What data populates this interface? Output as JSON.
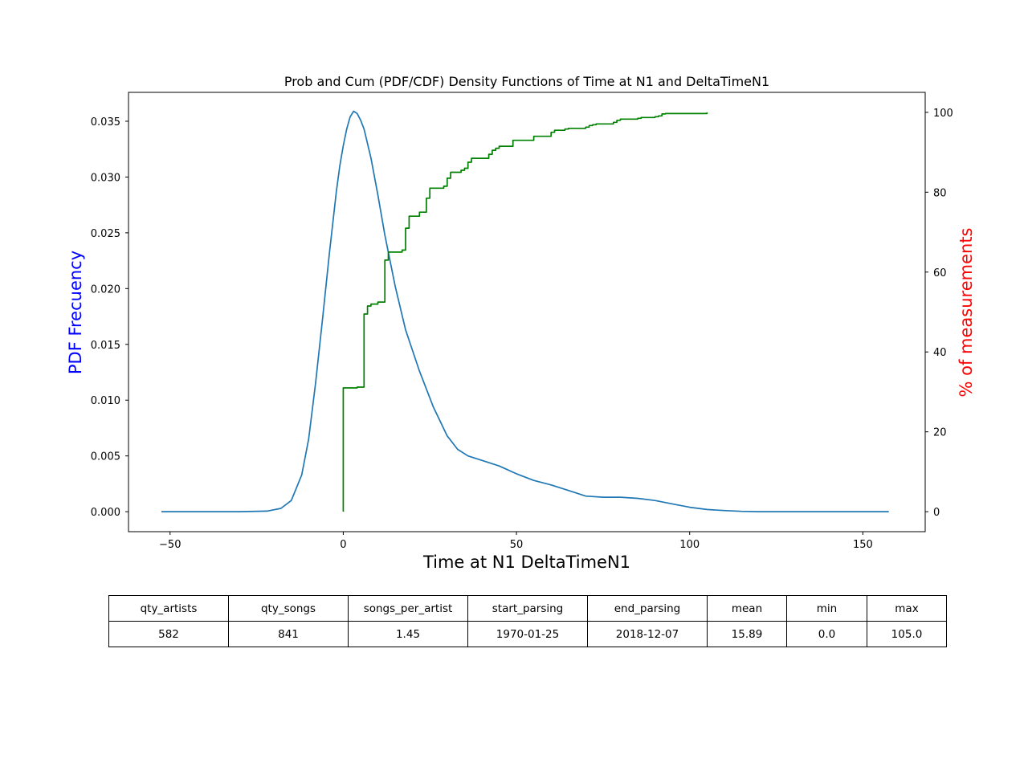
{
  "chart_data": {
    "type": "line",
    "title": "Prob and Cum (PDF/CDF) Density Functions of Time at N1 and DeltaTimeN1",
    "xlabel": "Time at N1 DeltaTimeN1",
    "ylabel": "PDF Frecuency",
    "y2label": "% of measurements",
    "xlim": [
      -62,
      168
    ],
    "ylim": [
      -0.00179,
      0.03759
    ],
    "y2lim": [
      -5,
      105
    ],
    "xticks": [
      -50,
      0,
      50,
      100,
      150
    ],
    "xtick_labels": [
      "−50",
      "0",
      "50",
      "100",
      "150"
    ],
    "yticks": [
      0.0,
      0.005,
      0.01,
      0.015,
      0.02,
      0.025,
      0.03,
      0.035
    ],
    "ytick_labels": [
      "0.000",
      "0.005",
      "0.010",
      "0.015",
      "0.020",
      "0.025",
      "0.030",
      "0.035"
    ],
    "y2ticks": [
      0,
      20,
      40,
      60,
      80,
      100
    ],
    "y2tick_labels": [
      "0",
      "20",
      "40",
      "60",
      "80",
      "100"
    ],
    "grid": false,
    "series": [
      {
        "type": "line",
        "axis": "left",
        "color": "#1f77b4",
        "x": [
          -52.5,
          -40,
          -30,
          -22,
          -18,
          -15,
          -12,
          -10,
          -8,
          -6,
          -4,
          -2,
          -1,
          0,
          1,
          2,
          3,
          4,
          5,
          6,
          8,
          10,
          12,
          15,
          18,
          22,
          26,
          30,
          33,
          36,
          40,
          45,
          50,
          55,
          60,
          65,
          70,
          75,
          80,
          85,
          90,
          95,
          100,
          105,
          110,
          115,
          120,
          130,
          140,
          157.5
        ],
        "y": [
          0.0,
          0.0,
          0.0,
          5e-05,
          0.0003,
          0.001,
          0.0033,
          0.0065,
          0.0115,
          0.0172,
          0.0232,
          0.0287,
          0.031,
          0.0328,
          0.0343,
          0.0354,
          0.0359,
          0.0357,
          0.0351,
          0.0343,
          0.0317,
          0.0284,
          0.0248,
          0.0202,
          0.0163,
          0.0126,
          0.0094,
          0.0068,
          0.0056,
          0.005,
          0.0046,
          0.0041,
          0.0034,
          0.0028,
          0.0024,
          0.0019,
          0.0014,
          0.0013,
          0.0013,
          0.0012,
          0.001,
          0.0007,
          0.0004,
          0.0002,
          0.0001,
          3e-05,
          0.0,
          0.0,
          0.0,
          0.0
        ]
      },
      {
        "type": "step",
        "axis": "right",
        "color": "#008000",
        "x": [
          0,
          0,
          3,
          4,
          6,
          6,
          7,
          8,
          10,
          12,
          12,
          13,
          15,
          17,
          18,
          18,
          19,
          22,
          22,
          23,
          24,
          24,
          25,
          29,
          30,
          30,
          31,
          34,
          35,
          36,
          36,
          37,
          40,
          42,
          42,
          43,
          44,
          45,
          45,
          49,
          49,
          50,
          55,
          55,
          60,
          60,
          61,
          64,
          65,
          70,
          71,
          72,
          73,
          78,
          79,
          80,
          85,
          86,
          90,
          91,
          92,
          92,
          93,
          105
        ],
        "y": [
          0,
          31,
          31,
          31.2,
          31.5,
          49.5,
          51.5,
          52,
          52.5,
          53,
          63,
          65,
          65,
          65.5,
          66,
          71,
          74,
          74,
          75,
          75,
          75.5,
          78.5,
          81,
          81.5,
          82,
          83.5,
          85,
          85.5,
          86,
          86.5,
          87.5,
          88.5,
          88.5,
          88.8,
          89.5,
          90.5,
          91,
          91.3,
          91.5,
          92,
          93,
          93,
          93.5,
          94,
          94,
          95,
          95.5,
          95.8,
          96,
          96.3,
          96.7,
          96.9,
          97.1,
          97.5,
          98,
          98.3,
          98.5,
          98.7,
          98.9,
          99.1,
          99.4,
          99.6,
          99.7,
          100
        ]
      }
    ]
  },
  "table": {
    "headers": [
      "qty_artists",
      "qty_songs",
      "songs_per_artist",
      "start_parsing",
      "end_parsing",
      "mean",
      "min",
      "max"
    ],
    "rows": [
      [
        "582",
        "841",
        "1.45",
        "1970-01-25",
        "2018-12-07",
        "15.89",
        "0.0",
        "105.0"
      ]
    ]
  }
}
